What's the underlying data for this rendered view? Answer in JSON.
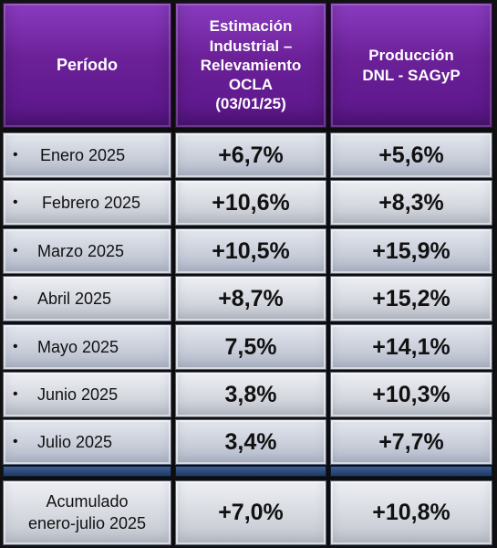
{
  "chart_data": {
    "type": "table",
    "columns": [
      "Período",
      "Estimación Industrial – Relevamiento OCLA (03/01/25)",
      "Producción DNL - SAGyP"
    ],
    "header_lines": {
      "col1": "Estimación\nIndustrial –\nRelevamiento\nOCLA\n(03/01/25)",
      "col2": "Producción\nDNL - SAGyP"
    },
    "rows": [
      {
        "period": "Enero 2025",
        "ocla": "+6,7%",
        "dnl": "+5,6%"
      },
      {
        "period": "Febrero 2025",
        "ocla": "+10,6%",
        "dnl": "+8,3%"
      },
      {
        "period": "Marzo 2025",
        "ocla": "+10,5%",
        "dnl": "+15,9%"
      },
      {
        "period": "Abril 2025",
        "ocla": "+8,7%",
        "dnl": "+15,2%"
      },
      {
        "period": "Mayo 2025",
        "ocla": "7,5%",
        "dnl": "+14,1%"
      },
      {
        "period": "Junio 2025",
        "ocla": "3,8%",
        "dnl": "+10,3%"
      },
      {
        "period": "Julio 2025",
        "ocla": "3,4%",
        "dnl": "+7,7%"
      }
    ],
    "total": {
      "label": "Acumulado\nenero-julio 2025",
      "ocla": "+7,0%",
      "dnl": "+10,8%"
    },
    "bullet": "•"
  },
  "colors": {
    "header_purple": "#6b2097",
    "row_gray": "#c9ceda",
    "divider_blue": "#2a4a7a",
    "frame": "#111111"
  }
}
